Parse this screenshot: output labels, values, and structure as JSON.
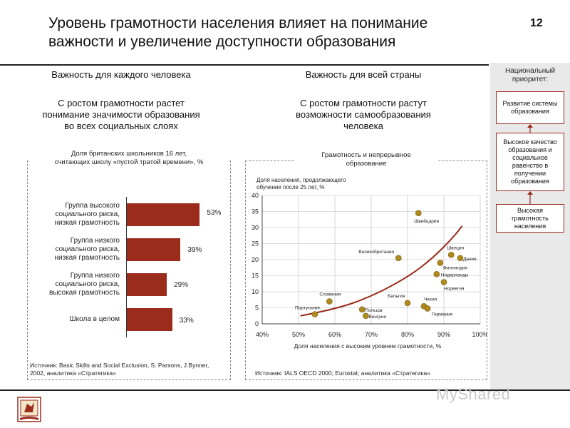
{
  "header": {
    "title_line1": "Уровень грамотности населения влияет на понимание",
    "title_line2": "важности и увеличение доступности образования",
    "page_number": "12"
  },
  "left_section": {
    "heading": "Важность для каждого человека",
    "sub_line1": "С ростом грамотности растет",
    "sub_line2": "понимание значимости образования",
    "sub_line3": "во всех социальных слоях",
    "chart_caption_line1": "Доля британских школьников 16 лет,",
    "chart_caption_line2": "считающих школу «пустой тратой времени», %",
    "source_line1": "Источник: Basic Skills and Social Exclusion, S. Parsons, J.Bynner,",
    "source_line2": "2002, аналитика «Стратегика»"
  },
  "right_section": {
    "heading": "Важность для всей страны",
    "sub_line1": "С ростом грамотности растут",
    "sub_line2": "возможности самообразования",
    "sub_line3": "человека",
    "chart_caption_line1": "Грамотность и непрерывное",
    "chart_caption_line2": "образование",
    "source": "Источник: IALS OECD 2000; Eurostat; аналитика «Стратегика»"
  },
  "side_panel": {
    "title_line1": "Национальный",
    "title_line2": "приоритет:",
    "box1": "Развитие системы образования",
    "box2": "Высокое качество образования и социальное равенство в получении образования",
    "box3": "Высокая грамотность населения"
  },
  "watermark": "MyShared",
  "colors": {
    "accent": "#9b2b1a",
    "point": "#b08a1e",
    "panel": "#e9e9e9"
  },
  "chart_data": [
    {
      "type": "bar",
      "orientation": "horizontal",
      "categories": [
        "Группа высокого социального риска, низкая грамотность",
        "Группа низкого социального риска, низкая грамотность",
        "Группа низкого социального риска, высокая грамотность",
        "Школа в целом"
      ],
      "category_lines": [
        [
          "Группа высокого",
          "социального риска,",
          "низкая грамотность"
        ],
        [
          "Группа низкого",
          "социального риска,",
          "низкая грамотность"
        ],
        [
          "Группа низкого",
          "социального риска,",
          "высокая грамотность"
        ],
        [
          "Школа в целом"
        ]
      ],
      "values": [
        53,
        39,
        29,
        33
      ],
      "value_labels": [
        "53%",
        "39%",
        "29%",
        "33%"
      ],
      "xlim": [
        0,
        100
      ]
    },
    {
      "type": "scatter",
      "ylabel_line1": "Доля населения, продолжающего",
      "ylabel_line2": "обучение после 25 лет, %",
      "xlabel": "Доля населения с высоким уровнем грамотности, %",
      "xlim": [
        0.4,
        1.0
      ],
      "ylim": [
        0,
        40
      ],
      "x_ticks": [
        0.4,
        0.5,
        0.6,
        0.7,
        0.8,
        0.9,
        1.0
      ],
      "x_tick_labels": [
        "40%",
        "50%",
        "60%",
        "70%",
        "80%",
        "90%",
        "100%"
      ],
      "y_ticks": [
        0,
        5,
        10,
        15,
        20,
        25,
        30,
        35,
        40
      ],
      "y_tick_labels": [
        "0",
        "5",
        "10",
        "15",
        "20",
        "25",
        "30",
        "35",
        "40"
      ],
      "grid": true,
      "points": [
        {
          "x": 0.545,
          "y": 3.0,
          "label": "Португалия"
        },
        {
          "x": 0.585,
          "y": 7.0,
          "label": "Словения"
        },
        {
          "x": 0.675,
          "y": 4.5,
          "label": "Польша"
        },
        {
          "x": 0.685,
          "y": 2.5,
          "label": "Венгрия"
        },
        {
          "x": 0.775,
          "y": 20.5,
          "label": "Великобритания"
        },
        {
          "x": 0.8,
          "y": 6.5,
          "label": "Бельгия"
        },
        {
          "x": 0.83,
          "y": 34.5,
          "label": "Швейцария"
        },
        {
          "x": 0.845,
          "y": 5.5,
          "label": "Чехия"
        },
        {
          "x": 0.855,
          "y": 4.8,
          "label": "Германия"
        },
        {
          "x": 0.88,
          "y": 15.5,
          "label": "Нидерланды"
        },
        {
          "x": 0.89,
          "y": 19.0,
          "label": "Финляндия"
        },
        {
          "x": 0.9,
          "y": 13.0,
          "label": "Норвегия"
        },
        {
          "x": 0.92,
          "y": 21.5,
          "label": "Швеция"
        },
        {
          "x": 0.945,
          "y": 20.5,
          "label": "Дания"
        }
      ],
      "trend": [
        {
          "x": 0.505,
          "y": 2.5
        },
        {
          "x": 0.6,
          "y": 4.5
        },
        {
          "x": 0.7,
          "y": 8.5
        },
        {
          "x": 0.8,
          "y": 14.5
        },
        {
          "x": 0.87,
          "y": 20.5
        },
        {
          "x": 0.93,
          "y": 27.5
        },
        {
          "x": 0.95,
          "y": 30.5
        }
      ]
    }
  ]
}
